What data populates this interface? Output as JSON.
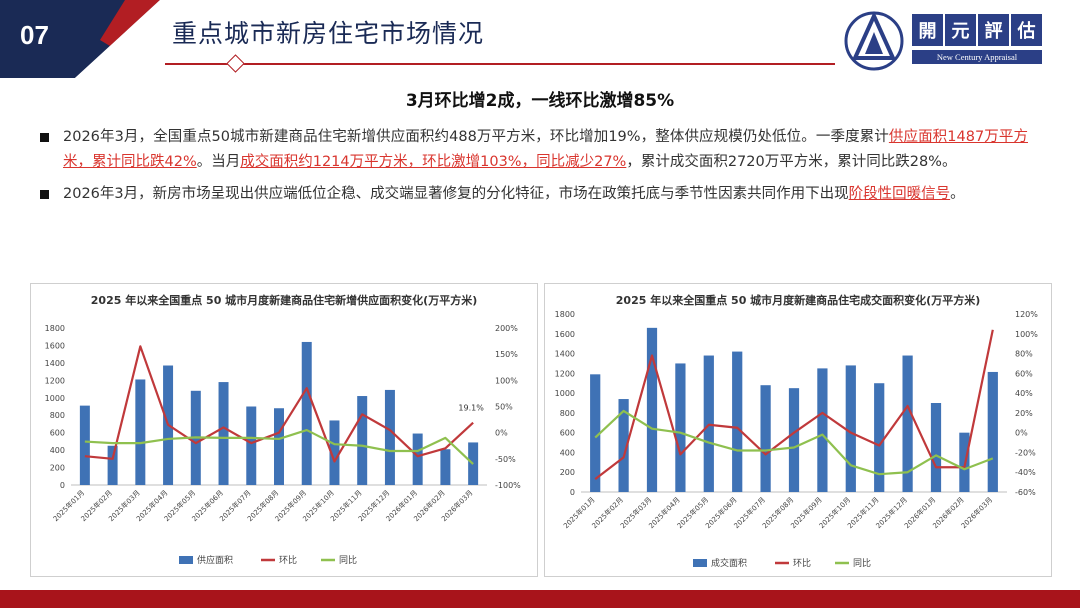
{
  "header": {
    "page_number": "07",
    "title": "重点城市新房住宅市场情况",
    "logo_chars": [
      "開",
      "元",
      "評",
      "估"
    ],
    "logo_en": "New Century Appraisal"
  },
  "subtitle": "3月环比增2成，一线环比激增85%",
  "bullets": [
    {
      "parts": [
        {
          "text": "2026年3月，全国重点50城市新建商品住宅新增供应面积约488万平方米，环比增加19%，整体供应规模仍处低位。一季度累计",
          "hl": false
        },
        {
          "text": "供应面积1487万平方米，累计同比跌42%",
          "hl": true
        },
        {
          "text": "。当月",
          "hl": false
        },
        {
          "text": "成交面积约1214万平方米，环比激增103%，同比减少27%",
          "hl": true
        },
        {
          "text": "，累计成交面积2720万平方米，累计同比跌28%。",
          "hl": false
        }
      ]
    },
    {
      "parts": [
        {
          "text": "2026年3月，新房市场呈现出供应端低位企稳、成交端显著修复的分化特征，市场在政策托底与季节性因素共同作用下出现",
          "hl": false
        },
        {
          "text": "阶段性回暖信号",
          "hl": true
        },
        {
          "text": "。",
          "hl": false
        }
      ]
    }
  ],
  "colors": {
    "bar": "#3f72b5",
    "mom": "#c0393b",
    "yoy": "#8fc04f",
    "header_navy": "#1a2a55",
    "accent_red": "#b21e23"
  },
  "chart_data": [
    {
      "type": "bar",
      "title": "2025 年以来全国重点 50 城市月度新建商品住宅新增供应面积变化(万平方米)",
      "categories": [
        "2025年01月",
        "2025年02月",
        "2025年03月",
        "2025年04月",
        "2025年05月",
        "2025年06月",
        "2025年07月",
        "2025年08月",
        "2025年09月",
        "2025年10月",
        "2025年11月",
        "2025年12月",
        "2026年01月",
        "2026年02月",
        "2026年03月"
      ],
      "series": [
        {
          "name": "供应面积",
          "axis": "left",
          "kind": "bar",
          "values": [
            910,
            450,
            1210,
            1370,
            1080,
            1180,
            900,
            880,
            1640,
            740,
            1020,
            1090,
            590,
            410,
            488
          ]
        },
        {
          "name": "环比",
          "axis": "right",
          "kind": "line",
          "values": [
            -45,
            -50,
            165,
            15,
            -20,
            10,
            -20,
            0,
            85,
            -55,
            35,
            5,
            -45,
            -30,
            19
          ]
        },
        {
          "name": "同比",
          "axis": "right",
          "kind": "line",
          "values": [
            -17,
            -20,
            -20,
            -12,
            -9,
            -10,
            -10,
            -12,
            5,
            -22,
            -25,
            -35,
            -35,
            -10,
            -60
          ]
        }
      ],
      "ylim_left": [
        0,
        1800
      ],
      "yticks_left": [
        "0",
        "200",
        "400",
        "600",
        "800",
        "1000",
        "1200",
        "1400",
        "1600",
        "1800"
      ],
      "ylim_right": [
        -100,
        200
      ],
      "yticks_right": [
        "-100%",
        "-50%",
        "0%",
        "50%",
        "100%",
        "150%",
        "200%"
      ],
      "annotation": "19.1%",
      "legend": "bottom"
    },
    {
      "type": "bar",
      "title": "2025 年以来全国重点 50 城市月度新建商品住宅成交面积变化(万平方米)",
      "categories": [
        "2025年01月",
        "2025年02月",
        "2025年03月",
        "2025年04月",
        "2025年05月",
        "2025年06月",
        "2025年07月",
        "2025年08月",
        "2025年09月",
        "2025年10月",
        "2025年11月",
        "2025年12月",
        "2026年01月",
        "2026年02月",
        "2026年03月"
      ],
      "series": [
        {
          "name": "成交面积",
          "axis": "left",
          "kind": "bar",
          "values": [
            1190,
            940,
            1660,
            1300,
            1380,
            1420,
            1080,
            1050,
            1250,
            1280,
            1100,
            1380,
            900,
            600,
            1214
          ]
        },
        {
          "name": "环比",
          "axis": "right",
          "kind": "line",
          "values": [
            -47,
            -25,
            78,
            -22,
            8,
            5,
            -22,
            0,
            20,
            0,
            -13,
            27,
            -35,
            -35,
            104
          ]
        },
        {
          "name": "同比",
          "axis": "right",
          "kind": "line",
          "values": [
            -5,
            22,
            4,
            0,
            -10,
            -18,
            -18,
            -15,
            -2,
            -33,
            -42,
            -40,
            -23,
            -37,
            -26
          ]
        }
      ],
      "ylim_left": [
        0,
        1800
      ],
      "yticks_left": [
        "0",
        "200",
        "400",
        "600",
        "800",
        "1000",
        "1200",
        "1400",
        "1600",
        "1800"
      ],
      "ylim_right": [
        -60,
        120
      ],
      "yticks_right": [
        "-60%",
        "-40%",
        "-20%",
        "0%",
        "20%",
        "40%",
        "60%",
        "80%",
        "100%",
        "120%"
      ],
      "legend": "bottom"
    }
  ]
}
